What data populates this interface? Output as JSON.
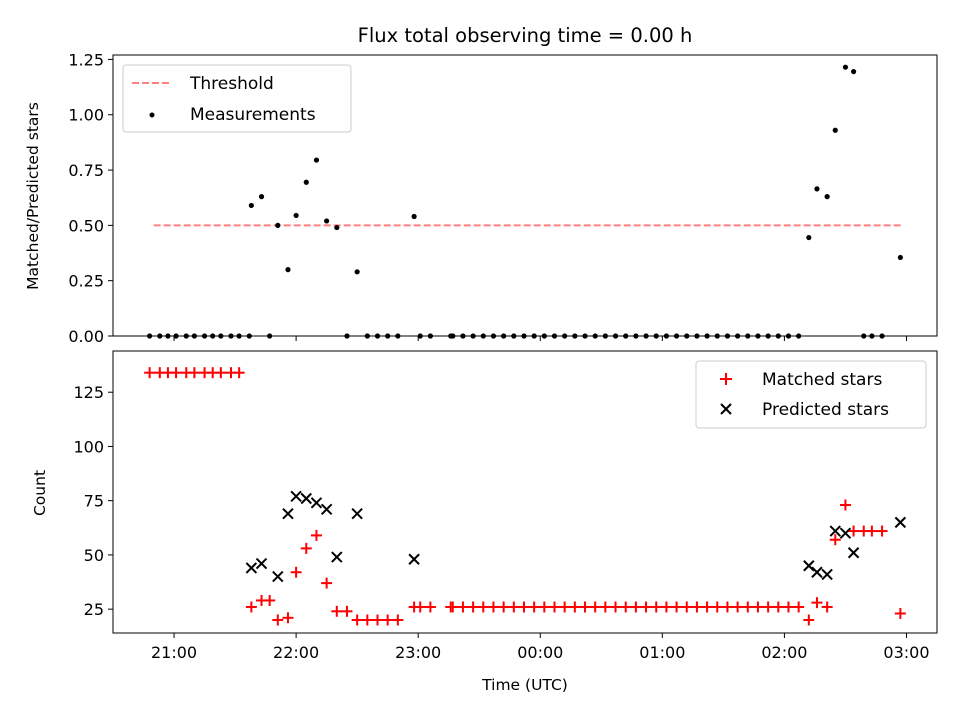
{
  "title": "Flux total observing time = 0.00 h",
  "xlabel": "Time (UTC)",
  "colors": {
    "threshold": "#ff7f7f",
    "measurement": "#000000",
    "matched": "#ff0000",
    "predicted": "#000000"
  },
  "chart_data": [
    {
      "type": "scatter",
      "panel": "top",
      "ylabel": "Matched/Predicted stars",
      "ylim": [
        0,
        1.27
      ],
      "yticks": [
        0,
        0.25,
        0.5,
        0.75,
        1.0,
        1.25
      ],
      "ytick_labels": [
        "0.00",
        "0.25",
        "0.50",
        "0.75",
        "1.00",
        "1.25"
      ],
      "xlim": [
        "20:30",
        "03:15"
      ],
      "xticks": [
        "21:00",
        "22:00",
        "23:00",
        "00:00",
        "01:00",
        "02:00",
        "03:00"
      ],
      "legend": {
        "position": "upper left",
        "entries": [
          "Threshold",
          "Measurements"
        ]
      },
      "series": [
        {
          "name": "Threshold",
          "kind": "dashed-line",
          "points": [
            [
              "20:50",
              0.5
            ],
            [
              "02:58",
              0.5
            ]
          ]
        },
        {
          "name": "Measurements",
          "kind": "dots",
          "points": [
            [
              "20:48",
              0.0
            ],
            [
              "20:53",
              0.0
            ],
            [
              "20:57",
              0.0
            ],
            [
              "21:01",
              0.0
            ],
            [
              "21:06",
              0.0
            ],
            [
              "21:10",
              0.0
            ],
            [
              "21:15",
              0.0
            ],
            [
              "21:19",
              0.0
            ],
            [
              "21:23",
              0.0
            ],
            [
              "21:28",
              0.0
            ],
            [
              "21:32",
              0.0
            ],
            [
              "21:37",
              0.0
            ],
            [
              "21:38",
              0.59
            ],
            [
              "21:43",
              0.63
            ],
            [
              "21:47",
              0.0
            ],
            [
              "21:51",
              0.5
            ],
            [
              "21:56",
              0.3
            ],
            [
              "22:00",
              0.545
            ],
            [
              "22:05",
              0.695
            ],
            [
              "22:10",
              0.795
            ],
            [
              "22:15",
              0.52
            ],
            [
              "22:20",
              0.49
            ],
            [
              "22:25",
              0.0
            ],
            [
              "22:30",
              0.29
            ],
            [
              "22:35",
              0.0
            ],
            [
              "22:40",
              0.0
            ],
            [
              "22:45",
              0.0
            ],
            [
              "22:50",
              0.0
            ],
            [
              "22:58",
              0.54
            ],
            [
              "23:01",
              0.0
            ],
            [
              "23:06",
              0.0
            ],
            [
              "23:16",
              0.0
            ],
            [
              "23:17",
              0.0
            ],
            [
              "23:22",
              0.0
            ],
            [
              "23:27",
              0.0
            ],
            [
              "23:32",
              0.0
            ],
            [
              "23:37",
              0.0
            ],
            [
              "23:42",
              0.0
            ],
            [
              "23:47",
              0.0
            ],
            [
              "23:52",
              0.0
            ],
            [
              "23:57",
              0.0
            ],
            [
              "00:02",
              0.0
            ],
            [
              "00:07",
              0.0
            ],
            [
              "00:12",
              0.0
            ],
            [
              "00:17",
              0.0
            ],
            [
              "00:22",
              0.0
            ],
            [
              "00:27",
              0.0
            ],
            [
              "00:32",
              0.0
            ],
            [
              "00:37",
              0.0
            ],
            [
              "00:42",
              0.0
            ],
            [
              "00:47",
              0.0
            ],
            [
              "00:52",
              0.0
            ],
            [
              "00:57",
              0.0
            ],
            [
              "01:02",
              0.0
            ],
            [
              "01:07",
              0.0
            ],
            [
              "01:12",
              0.0
            ],
            [
              "01:17",
              0.0
            ],
            [
              "01:22",
              0.0
            ],
            [
              "01:27",
              0.0
            ],
            [
              "01:32",
              0.0
            ],
            [
              "01:37",
              0.0
            ],
            [
              "01:42",
              0.0
            ],
            [
              "01:47",
              0.0
            ],
            [
              "01:52",
              0.0
            ],
            [
              "01:57",
              0.0
            ],
            [
              "02:02",
              0.0
            ],
            [
              "02:07",
              0.0
            ],
            [
              "02:12",
              0.445
            ],
            [
              "02:16",
              0.665
            ],
            [
              "02:21",
              0.63
            ],
            [
              "02:25",
              0.93
            ],
            [
              "02:30",
              1.215
            ],
            [
              "02:34",
              1.195
            ],
            [
              "02:39",
              0.0
            ],
            [
              "02:43",
              0.0
            ],
            [
              "02:48",
              0.0
            ],
            [
              "02:57",
              0.355
            ]
          ]
        }
      ]
    },
    {
      "type": "scatter",
      "panel": "bottom",
      "ylabel": "Count",
      "ylim": [
        14,
        144
      ],
      "yticks": [
        25,
        50,
        75,
        100,
        125
      ],
      "ytick_labels": [
        "25",
        "50",
        "75",
        "100",
        "125"
      ],
      "xlim": [
        "20:30",
        "03:15"
      ],
      "xticks": [
        "21:00",
        "22:00",
        "23:00",
        "00:00",
        "01:00",
        "02:00",
        "03:00"
      ],
      "xtick_labels": [
        "21:00",
        "22:00",
        "23:00",
        "00:00",
        "01:00",
        "02:00",
        "03:00"
      ],
      "legend": {
        "position": "upper right",
        "entries": [
          "Matched stars",
          "Predicted stars"
        ]
      },
      "series": [
        {
          "name": "Matched stars",
          "kind": "plus",
          "points": [
            [
              "20:48",
              134
            ],
            [
              "20:53",
              134
            ],
            [
              "20:57",
              134
            ],
            [
              "21:01",
              134
            ],
            [
              "21:06",
              134
            ],
            [
              "21:10",
              134
            ],
            [
              "21:15",
              134
            ],
            [
              "21:19",
              134
            ],
            [
              "21:23",
              134
            ],
            [
              "21:28",
              134
            ],
            [
              "21:32",
              134
            ],
            [
              "21:38",
              26
            ],
            [
              "21:43",
              29
            ],
            [
              "21:47",
              29
            ],
            [
              "21:51",
              20
            ],
            [
              "21:56",
              21
            ],
            [
              "22:00",
              42
            ],
            [
              "22:05",
              53
            ],
            [
              "22:10",
              59
            ],
            [
              "22:15",
              37
            ],
            [
              "22:20",
              24
            ],
            [
              "22:25",
              24
            ],
            [
              "22:30",
              20
            ],
            [
              "22:35",
              20
            ],
            [
              "22:40",
              20
            ],
            [
              "22:45",
              20
            ],
            [
              "22:50",
              20
            ],
            [
              "22:58",
              26
            ],
            [
              "23:01",
              26
            ],
            [
              "23:06",
              26
            ],
            [
              "23:16",
              26
            ],
            [
              "23:17",
              26
            ],
            [
              "23:22",
              26
            ],
            [
              "23:27",
              26
            ],
            [
              "23:32",
              26
            ],
            [
              "23:37",
              26
            ],
            [
              "23:42",
              26
            ],
            [
              "23:47",
              26
            ],
            [
              "23:52",
              26
            ],
            [
              "23:57",
              26
            ],
            [
              "00:02",
              26
            ],
            [
              "00:07",
              26
            ],
            [
              "00:12",
              26
            ],
            [
              "00:17",
              26
            ],
            [
              "00:22",
              26
            ],
            [
              "00:27",
              26
            ],
            [
              "00:32",
              26
            ],
            [
              "00:37",
              26
            ],
            [
              "00:42",
              26
            ],
            [
              "00:47",
              26
            ],
            [
              "00:52",
              26
            ],
            [
              "00:57",
              26
            ],
            [
              "01:02",
              26
            ],
            [
              "01:07",
              26
            ],
            [
              "01:12",
              26
            ],
            [
              "01:17",
              26
            ],
            [
              "01:22",
              26
            ],
            [
              "01:27",
              26
            ],
            [
              "01:32",
              26
            ],
            [
              "01:37",
              26
            ],
            [
              "01:42",
              26
            ],
            [
              "01:47",
              26
            ],
            [
              "01:52",
              26
            ],
            [
              "01:57",
              26
            ],
            [
              "02:02",
              26
            ],
            [
              "02:07",
              26
            ],
            [
              "02:12",
              20
            ],
            [
              "02:16",
              28
            ],
            [
              "02:21",
              26
            ],
            [
              "02:25",
              57
            ],
            [
              "02:30",
              73
            ],
            [
              "02:34",
              61
            ],
            [
              "02:39",
              61
            ],
            [
              "02:43",
              61
            ],
            [
              "02:48",
              61
            ],
            [
              "02:57",
              23
            ]
          ]
        },
        {
          "name": "Predicted stars",
          "kind": "x",
          "points": [
            [
              "21:38",
              44
            ],
            [
              "21:43",
              46
            ],
            [
              "21:51",
              40
            ],
            [
              "21:56",
              69
            ],
            [
              "22:00",
              77
            ],
            [
              "22:05",
              76
            ],
            [
              "22:10",
              74
            ],
            [
              "22:15",
              71
            ],
            [
              "22:20",
              49
            ],
            [
              "22:30",
              69
            ],
            [
              "22:58",
              48
            ],
            [
              "02:12",
              45
            ],
            [
              "02:16",
              42
            ],
            [
              "02:21",
              41
            ],
            [
              "02:25",
              61
            ],
            [
              "02:30",
              60
            ],
            [
              "02:34",
              51
            ],
            [
              "02:57",
              65
            ]
          ]
        }
      ]
    }
  ]
}
